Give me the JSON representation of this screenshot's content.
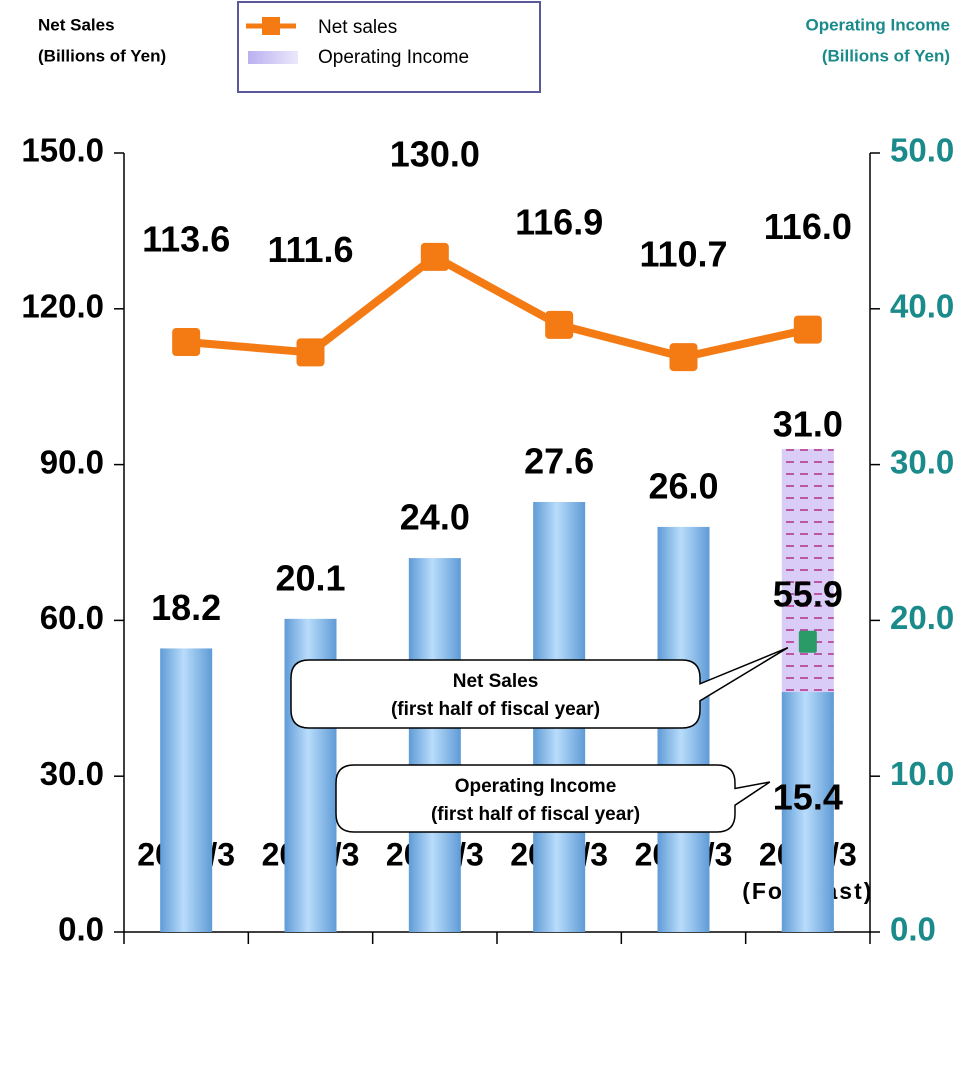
{
  "chart_data": {
    "type": "bar",
    "y_label": [
      "Net Sales",
      "(Billions of Yen)"
    ],
    "y2_label": [
      "Operating Income",
      "(Billions of Yen)"
    ],
    "y2_color": "#1a8a8a",
    "legend": "top",
    "categories": [
      "2004/3",
      "2005/3",
      "2006/3",
      "2007/3",
      "2008/3",
      "2009/3"
    ],
    "forecast": [
      false,
      false,
      false,
      false,
      false,
      true
    ],
    "forecast_label": "(Forecast)",
    "ylim": [
      0,
      150
    ],
    "yticks": [
      {
        "value": 0,
        "label": "0.0"
      },
      {
        "value": 30,
        "label": "30.0"
      },
      {
        "value": 60,
        "label": "60.0"
      },
      {
        "value": 90,
        "label": "90.0"
      },
      {
        "value": 120,
        "label": "120.0"
      },
      {
        "value": 150,
        "label": "150.0"
      }
    ],
    "y2lim": [
      0,
      50
    ],
    "y2ticks": [
      {
        "value": 0,
        "label": "0.0"
      },
      {
        "value": 10,
        "label": "10.0"
      },
      {
        "value": 20,
        "label": "20.0"
      },
      {
        "value": 30,
        "label": "30.0"
      },
      {
        "value": 40,
        "label": "40.0"
      },
      {
        "value": 50,
        "label": "50.0"
      }
    ],
    "series": [
      {
        "name": "Net sales",
        "type": "line",
        "color": "#f47a14",
        "values": [
          113.6,
          111.6,
          130.0,
          116.9,
          110.7,
          116.0
        ],
        "value_labels": [
          "113.6",
          "111.6",
          "130.0",
          "116.9",
          "110.7",
          "116.0"
        ]
      },
      {
        "name": "Operating Income",
        "type": "bar",
        "axis": "y2",
        "color": "#8cc0ee",
        "forecast_color": "#d9cdf7",
        "values": [
          18.2,
          20.1,
          24.0,
          27.6,
          26.0,
          31.0
        ],
        "value_labels": [
          "18.2",
          "20.1",
          "24.0",
          "27.6",
          "26.0",
          "31.0"
        ]
      }
    ],
    "first_half": {
      "net_sales": {
        "label": [
          "Net Sales",
          "(first half of fiscal year)"
        ],
        "value": 55.9,
        "value_label": "55.9",
        "color": "#2a9a66"
      },
      "operating_income": {
        "label": [
          "Operating Income",
          "(first half of fiscal year)"
        ],
        "value": 15.4,
        "value_label": "15.4",
        "axis": "y2"
      }
    }
  }
}
